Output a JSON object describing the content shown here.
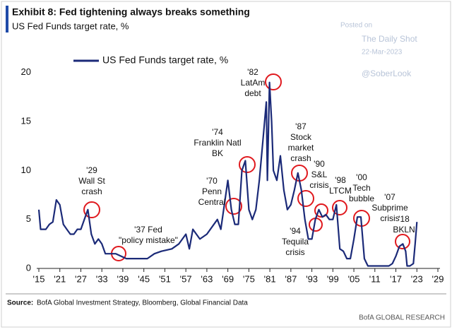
{
  "chart_data": {
    "type": "line",
    "title": "Exhibit 8: Fed tightening always breaks something",
    "subtitle": "US Fed Funds target rate, %",
    "watermark": [
      "Posted on",
      "The Daily Shot",
      "22-Mar-2023",
      "@SoberLook"
    ],
    "x": [
      1915,
      1915.5,
      1917,
      1918,
      1919,
      1920,
      1921,
      1922,
      1923,
      1924,
      1925,
      1926,
      1927,
      1928,
      1929,
      1930,
      1931,
      1932,
      1933,
      1934,
      1936,
      1937,
      1940,
      1942,
      1946,
      1948,
      1950,
      1953,
      1955,
      1957,
      1958,
      1959,
      1961,
      1963,
      1966,
      1967,
      1969,
      1970,
      1971,
      1972,
      1973,
      1974,
      1975,
      1976,
      1977,
      1978,
      1979,
      1980,
      1980.3,
      1980.9,
      1981.5,
      1982,
      1983,
      1984,
      1985,
      1986,
      1987,
      1988,
      1989,
      1990,
      1991,
      1992,
      1993,
      1994,
      1995,
      1996,
      1997,
      1998,
      1999,
      2000,
      2001,
      2002,
      2003,
      2004,
      2005,
      2006,
      2007,
      2008,
      2009,
      2015,
      2016,
      2017,
      2018,
      2019,
      2019.8,
      2020.2,
      2021,
      2022,
      2022.5,
      2023
    ],
    "series": [
      {
        "name": "US Fed Funds target rate, %",
        "color": "#1b2a78",
        "values": [
          6,
          4,
          4,
          4.5,
          4.75,
          7,
          6.5,
          4.5,
          4,
          3.5,
          3.5,
          4,
          4,
          5,
          6,
          3.5,
          2.5,
          3,
          2.5,
          1.5,
          1.5,
          1.5,
          1,
          1,
          1,
          1.5,
          1.75,
          2,
          2.5,
          3.5,
          2,
          4,
          3,
          3.5,
          5,
          4,
          9,
          6,
          4.5,
          4.5,
          10,
          11,
          6,
          5,
          6,
          9,
          13,
          17,
          9,
          19,
          15,
          10,
          9,
          11.5,
          8,
          6,
          6.5,
          8,
          9.75,
          8,
          5,
          3,
          3,
          5,
          6,
          5.25,
          5.5,
          5,
          5,
          6.5,
          2,
          1.75,
          1,
          1,
          3,
          5.25,
          5.25,
          1,
          0.25,
          0.25,
          0.5,
          1.25,
          2.25,
          2.5,
          1.75,
          0.25,
          0.25,
          0.5,
          2.5,
          4.75
        ]
      }
    ],
    "xlim": [
      1915,
      2029
    ],
    "xticks": [
      {
        "value": 1915,
        "label": "'15"
      },
      {
        "value": 1921,
        "label": "'21"
      },
      {
        "value": 1927,
        "label": "'27"
      },
      {
        "value": 1933,
        "label": "'33"
      },
      {
        "value": 1939,
        "label": "'39"
      },
      {
        "value": 1945,
        "label": "'45"
      },
      {
        "value": 1951,
        "label": "'51"
      },
      {
        "value": 1957,
        "label": "'57"
      },
      {
        "value": 1963,
        "label": "'63"
      },
      {
        "value": 1969,
        "label": "'69"
      },
      {
        "value": 1975,
        "label": "'75"
      },
      {
        "value": 1981,
        "label": "'81"
      },
      {
        "value": 1987,
        "label": "'87"
      },
      {
        "value": 1993,
        "label": "'93"
      },
      {
        "value": 1999,
        "label": "'99"
      },
      {
        "value": 2005,
        "label": "'05"
      },
      {
        "value": 2011,
        "label": "'11"
      },
      {
        "value": 2017,
        "label": "'17"
      },
      {
        "value": 2023,
        "label": "'23"
      },
      {
        "value": 2029,
        "label": "'29"
      }
    ],
    "ylim": [
      0,
      21.5
    ],
    "yticks": [
      0,
      5,
      10,
      15,
      20
    ],
    "annotations": [
      [
        "'29",
        "Wall St",
        "crash"
      ],
      [
        "'37 Fed",
        "\"policy mistake\""
      ],
      [
        "'70",
        "Penn",
        "Central"
      ],
      [
        "'74",
        "Franklin Natl",
        "BK"
      ],
      [
        "'82",
        "LatAm",
        "debt"
      ],
      [
        "'87",
        "Stock",
        "market",
        "crash"
      ],
      [
        "'90",
        "S&L",
        "crisis"
      ],
      [
        "'94",
        "Tequila",
        "crisis"
      ],
      [
        "'98",
        "LTCM"
      ],
      [
        "'00",
        "Tech",
        "bubble"
      ],
      [
        "'07",
        "Subprime",
        "crisis"
      ],
      [
        "'18",
        "BKLN"
      ]
    ],
    "source_label": "Source:",
    "source": "BofA Global Investment Strategy, Bloomberg, Global Financial Data",
    "footer": "BofA GLOBAL RESEARCH"
  }
}
